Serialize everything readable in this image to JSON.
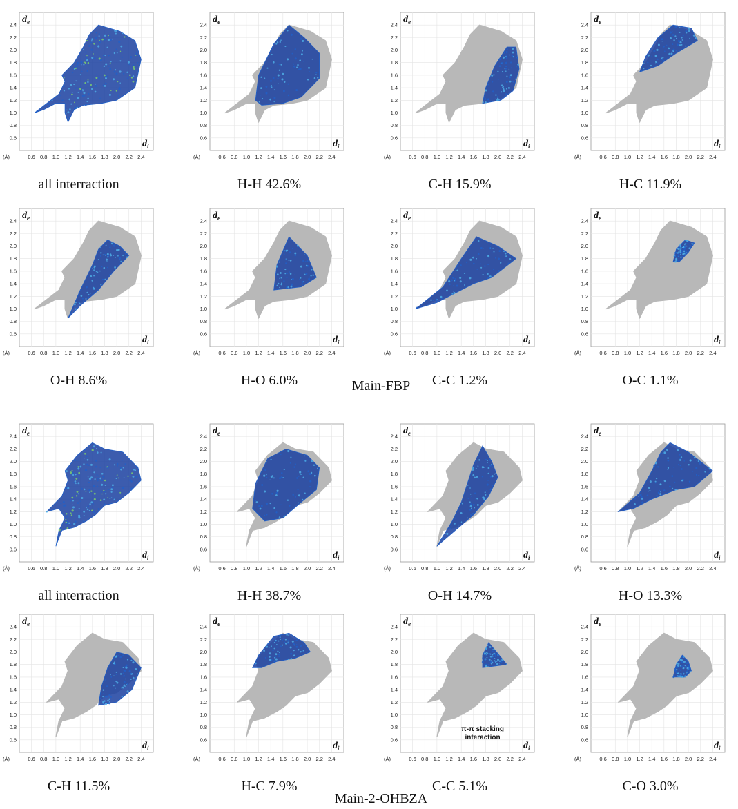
{
  "chart_data": [
    {
      "type": "scatter",
      "group": "Main-FBP",
      "panels": [
        {
          "caption": "all interraction",
          "highlight": "all",
          "x_ticks": [
            "0.6",
            "0.8",
            "1.0",
            "1.2",
            "1.4",
            "1.6",
            "1.8",
            "2.0",
            "2.2",
            "2.4"
          ],
          "y_ticks": [
            "0.6",
            "0.8",
            "1.0",
            "1.2",
            "1.4",
            "1.6",
            "1.8",
            "2.0",
            "2.2",
            "2.4"
          ]
        },
        {
          "caption": "H-H 42.6%",
          "highlight": "H-H"
        },
        {
          "caption": "C-H 15.9%",
          "highlight": "C-H"
        },
        {
          "caption": "H-C 11.9%",
          "highlight": "H-C"
        },
        {
          "caption": "O-H 8.6%",
          "highlight": "O-H"
        },
        {
          "caption": "H-O 6.0%",
          "highlight": "H-O"
        },
        {
          "caption": "C-C 1.2%",
          "highlight": "C-C"
        },
        {
          "caption": "O-C 1.1%",
          "highlight": "O-C"
        }
      ]
    },
    {
      "type": "scatter",
      "group": "Main-2-OHBZA",
      "panels": [
        {
          "caption": "all interraction",
          "highlight": "all"
        },
        {
          "caption": "H-H 38.7%",
          "highlight": "H-H"
        },
        {
          "caption": "O-H 14.7%",
          "highlight": "O-H"
        },
        {
          "caption": "H-O 13.3%",
          "highlight": "H-O"
        },
        {
          "caption": "C-H 11.5%",
          "highlight": "C-H"
        },
        {
          "caption": "H-C 7.9%",
          "highlight": "H-C"
        },
        {
          "caption": "C-C 5.1%",
          "highlight": "C-C",
          "annotation": [
            "π-π stacking",
            "interaction"
          ]
        },
        {
          "caption": "C-O 3.0%",
          "highlight": "C-O"
        }
      ]
    }
  ],
  "axes": {
    "x_label": "d",
    "x_sub": "i",
    "y_label": "d",
    "y_sub": "e",
    "unit": "(Å)",
    "range": [
      0.4,
      2.6
    ],
    "ticks": [
      "0.6",
      "0.8",
      "1.0",
      "1.2",
      "1.4",
      "1.6",
      "1.8",
      "2.0",
      "2.2",
      "2.4"
    ]
  },
  "colors": {
    "grey": "#b8b8b8",
    "blue_dark": "#1a3fa0",
    "blue": "#2060c8",
    "cyan": "#4fb0e8",
    "green": "#7fd36a",
    "grid": "#e4e4e4",
    "frame": "#9a9a9a"
  },
  "group_labels": {
    "fbp": "Main-FBP",
    "ohbza": "Main-2-OHBZA"
  }
}
